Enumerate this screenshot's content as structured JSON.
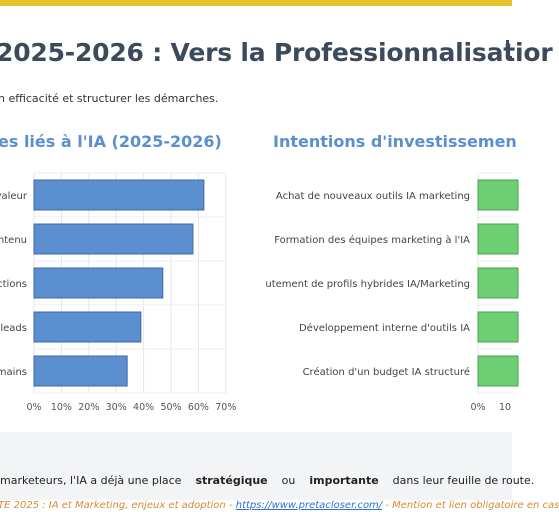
{
  "page": {
    "title": "2025-2026 : Vers la Professionnalisatior",
    "subtitle": "n efficacité et structurer les démarches."
  },
  "chart_data": [
    {
      "type": "bar",
      "orientation": "horizontal",
      "title": "es liés à l'IA (2025-2026)",
      "categories": [
        "valeur",
        "ntenu",
        "ctions",
        "leads",
        "mains"
      ],
      "values": [
        62,
        58,
        47,
        39,
        34
      ],
      "xlim": [
        0,
        70
      ],
      "xticks": [
        "0%",
        "10%",
        "20%",
        "30%",
        "40%",
        "50%",
        "60%",
        "70%"
      ],
      "grid": true,
      "color": "#5b8fcf"
    },
    {
      "type": "bar",
      "orientation": "horizontal",
      "title": "Intentions d'investissemen",
      "categories": [
        "Achat de nouveaux outils IA marketing",
        "Formation des équipes marketing à l'IA",
        "utement de profils hybrides IA/Marketing",
        "Développement interne d'outils IA",
        "Création d'un budget IA structuré"
      ],
      "xticks": [
        "0%",
        "10"
      ],
      "grid": true,
      "color": "#6ecf72"
    }
  ],
  "statement": {
    "before": "marketeurs, l'IA a déjà une place",
    "word1": "stratégique",
    "middle": "ou",
    "word2": "importante",
    "after": "dans leur feuille de route."
  },
  "footer": {
    "source": "TE 2025 : IA et Marketing, enjeux et adoption -",
    "link": "https://www.pretacloser.com/",
    "note": "- Mention et lien obligatoire en cas"
  }
}
